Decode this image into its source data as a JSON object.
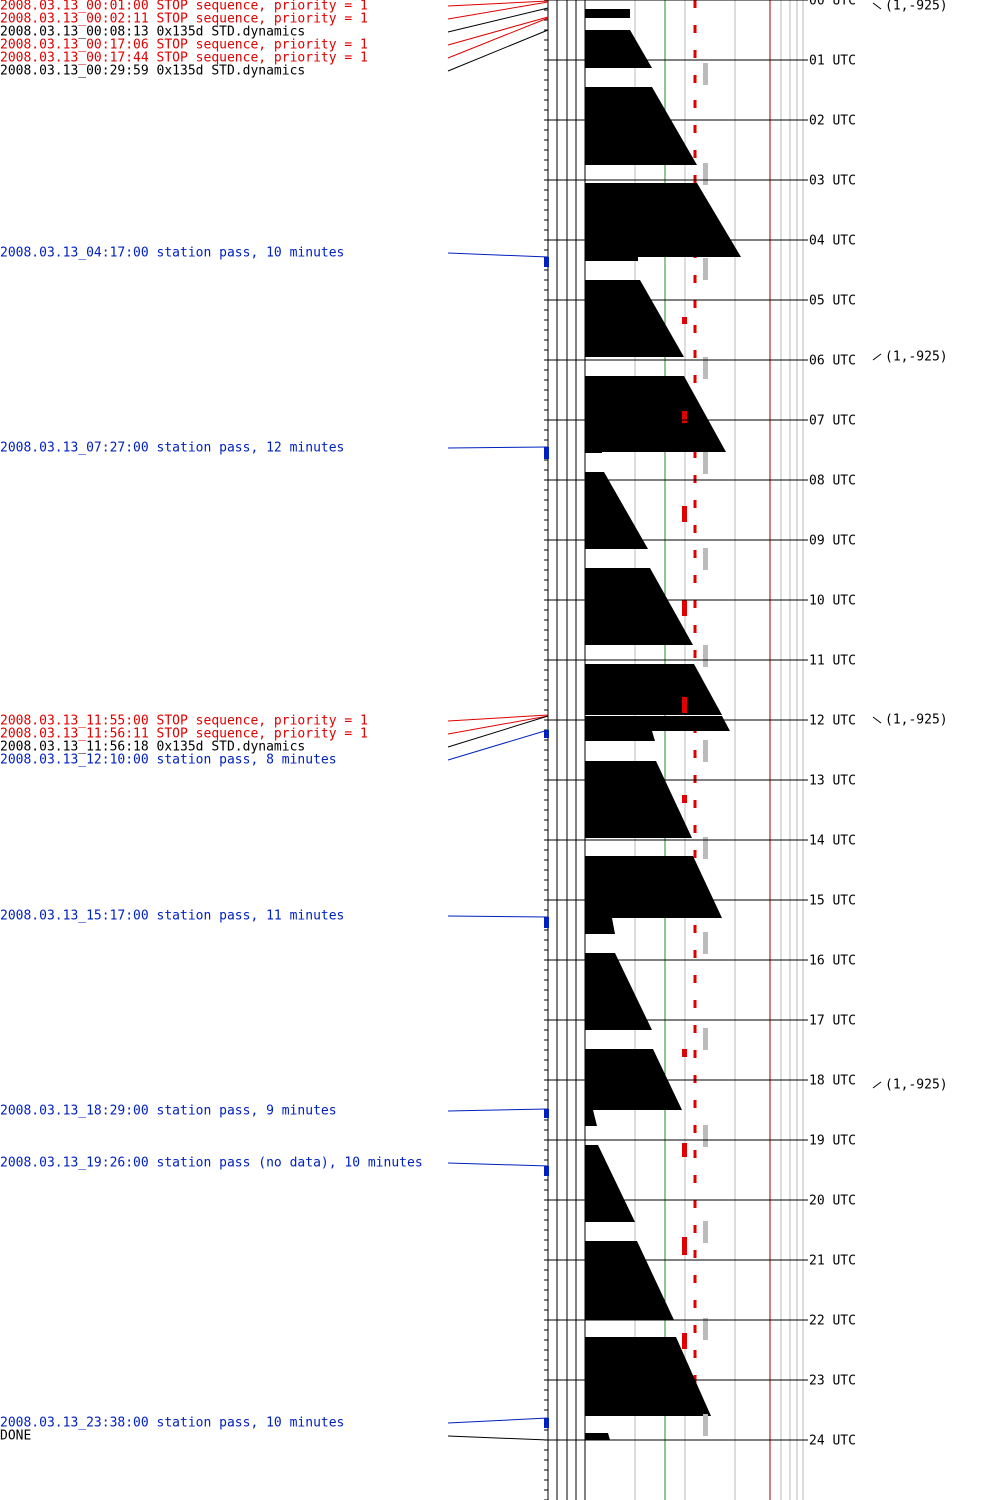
{
  "events": [
    {
      "text": "2008.03.13_00:01:00 STOP sequence, priority = 1",
      "color": "#e00000"
    },
    {
      "text": "2008.03.13_00:02:11 STOP sequence, priority = 1",
      "color": "#e00000"
    },
    {
      "text": "2008.03.13_00:08:13 0x135d STD.dynamics",
      "color": "#000000"
    },
    {
      "text": "2008.03.13_00:17:06 STOP sequence, priority = 1",
      "color": "#e00000"
    },
    {
      "text": "2008.03.13_00:17:44 STOP sequence, priority = 1",
      "color": "#e00000"
    },
    {
      "text": "2008.03.13_00:29:59 0x135d STD.dynamics",
      "color": "#000000"
    },
    {
      "text": "2008.03.13_04:17:00 station pass, 10 minutes",
      "color": "#0020c0"
    },
    {
      "text": "2008.03.13_07:27:00 station pass, 12 minutes",
      "color": "#0020c0"
    },
    {
      "text": "2008.03.13_11:55:00 STOP sequence, priority = 1",
      "color": "#e00000"
    },
    {
      "text": "2008.03.13_11:56:11 STOP sequence, priority = 1",
      "color": "#e00000"
    },
    {
      "text": "2008.03.13_11:56:18 0x135d STD.dynamics",
      "color": "#000000"
    },
    {
      "text": "2008.03.13_12:10:00 station pass, 8 minutes",
      "color": "#0020c0"
    },
    {
      "text": "2008.03.13_15:17:00 station pass, 11 minutes",
      "color": "#0020c0"
    },
    {
      "text": "2008.03.13_18:29:00 station pass, 9 minutes",
      "color": "#0020c0"
    },
    {
      "text": "2008.03.13_19:26:00 station pass (no data), 10 minutes",
      "color": "#0020c0"
    },
    {
      "text": "2008.03.13_23:38:00 station pass, 10 minutes",
      "color": "#0020c0"
    },
    {
      "text": "DONE",
      "color": "#000000"
    }
  ],
  "hours": [
    "00 UTC",
    "01 UTC",
    "02 UTC",
    "03 UTC",
    "04 UTC",
    "05 UTC",
    "06 UTC",
    "07 UTC",
    "08 UTC",
    "09 UTC",
    "10 UTC",
    "11 UTC",
    "12 UTC",
    "13 UTC",
    "14 UTC",
    "15 UTC",
    "16 UTC",
    "17 UTC",
    "18 UTC",
    "19 UTC",
    "20 UTC",
    "21 UTC",
    "22 UTC",
    "23 UTC",
    "24 UTC"
  ],
  "annotations": [
    "(1,-925)",
    "(1,-925)",
    "(1,-925)",
    "(1,-925)"
  ]
}
